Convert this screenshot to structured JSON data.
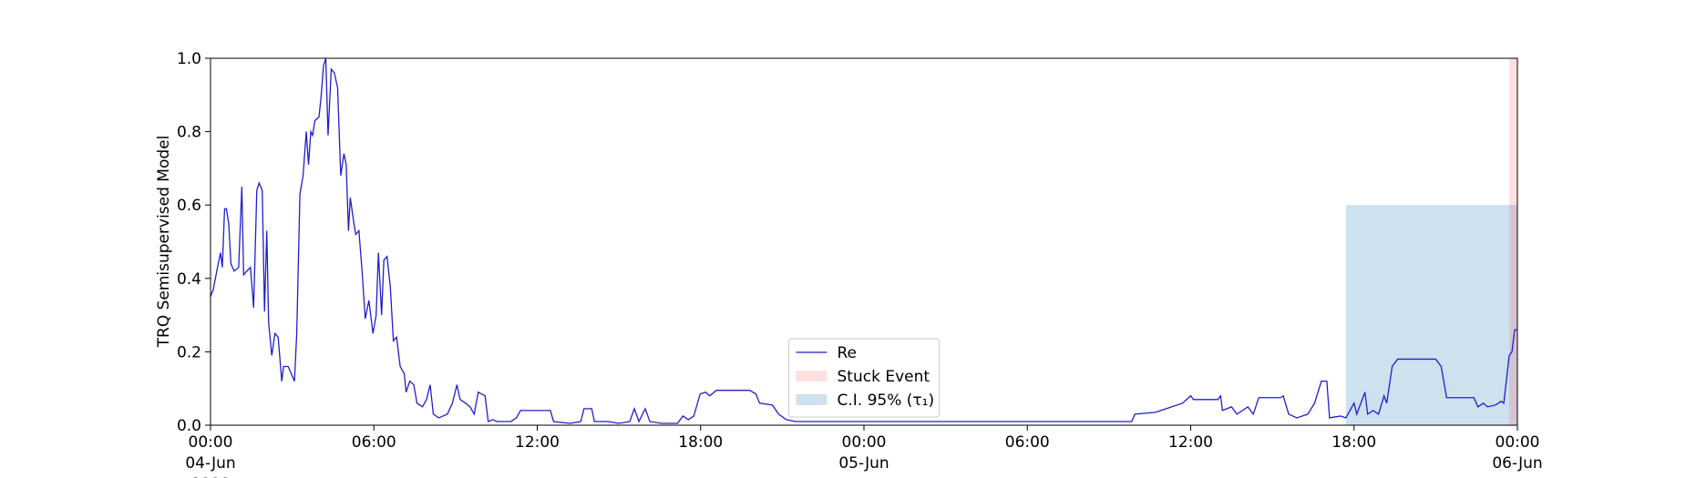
{
  "chart_data": {
    "type": "line",
    "ylabel": "TRQ Semisupervised Model",
    "xlim": [
      "1900-06-04 00:00",
      "1900-06-06 00:00"
    ],
    "xticks": [
      {
        "value": "1900-06-04 00:00",
        "label": "00:00\n04-Jun\n1900"
      },
      {
        "value": "1900-06-04 06:00",
        "label": "06:00"
      },
      {
        "value": "1900-06-04 12:00",
        "label": "12:00"
      },
      {
        "value": "1900-06-04 18:00",
        "label": "18:00"
      },
      {
        "value": "1900-06-05 00:00",
        "label": "00:00\n05-Jun"
      },
      {
        "value": "1900-06-05 06:00",
        "label": "06:00"
      },
      {
        "value": "1900-06-05 12:00",
        "label": "12:00"
      },
      {
        "value": "1900-06-05 18:00",
        "label": "18:00"
      },
      {
        "value": "1900-06-06 00:00",
        "label": "00:00\n06-Jun"
      }
    ],
    "ylim": [
      0,
      1
    ],
    "yticks": [
      {
        "value": 0,
        "label": "0.0"
      },
      0.2,
      0.4,
      0.6,
      0.8,
      {
        "value": 1,
        "label": "1.0"
      }
    ],
    "legend": "lower center",
    "x": [
      "1900-06-04 00:00",
      "1900-06-04 00:06",
      "1900-06-04 00:17",
      "1900-06-04 00:22",
      "1900-06-04 00:26",
      "1900-06-04 00:31",
      "1900-06-04 00:35",
      "1900-06-04 00:40",
      "1900-06-04 00:45",
      "1900-06-04 00:52",
      "1900-06-04 01:02",
      "1900-06-04 01:09",
      "1900-06-04 01:13",
      "1900-06-04 01:20",
      "1900-06-04 01:28",
      "1900-06-04 01:35",
      "1900-06-04 01:42",
      "1900-06-04 01:47",
      "1900-06-04 01:54",
      "1900-06-04 01:59",
      "1900-06-04 02:04",
      "1900-06-04 02:08",
      "1900-06-04 02:15",
      "1900-06-04 02:22",
      "1900-06-04 02:29",
      "1900-06-04 02:37",
      "1900-06-04 02:41",
      "1900-06-04 02:51",
      "1900-06-04 02:58",
      "1900-06-04 03:05",
      "1900-06-04 03:10",
      "1900-06-04 03:17",
      "1900-06-04 03:24",
      "1900-06-04 03:31",
      "1900-06-04 03:36",
      "1900-06-04 03:41",
      "1900-06-04 03:45",
      "1900-06-04 03:50",
      "1900-06-04 03:59",
      "1900-06-04 04:04",
      "1900-06-04 04:09",
      "1900-06-04 04:14",
      "1900-06-04 04:19",
      "1900-06-04 04:26",
      "1900-06-04 04:33",
      "1900-06-04 04:40",
      "1900-06-04 04:47",
      "1900-06-04 04:54",
      "1900-06-04 04:59",
      "1900-06-04 05:04",
      "1900-06-04 05:08",
      "1900-06-04 05:16",
      "1900-06-04 05:20",
      "1900-06-04 05:27",
      "1900-06-04 05:34",
      "1900-06-04 05:41",
      "1900-06-04 05:49",
      "1900-06-04 05:58",
      "1900-06-04 06:05",
      "1900-06-04 06:10",
      "1900-06-04 06:17",
      "1900-06-04 06:22",
      "1900-06-04 06:29",
      "1900-06-04 06:36",
      "1900-06-04 06:43",
      "1900-06-04 06:50",
      "1900-06-04 06:58",
      "1900-06-04 07:07",
      "1900-06-04 07:11",
      "1900-06-04 07:19",
      "1900-06-04 07:28",
      "1900-06-04 07:35",
      "1900-06-04 07:47",
      "1900-06-04 07:56",
      "1900-06-04 08:04",
      "1900-06-04 08:11",
      "1900-06-04 08:23",
      "1900-06-04 08:42",
      "1900-06-04 08:53",
      "1900-06-04 09:03",
      "1900-06-04 09:10",
      "1900-06-04 09:22",
      "1900-06-04 09:32",
      "1900-06-04 09:41",
      "1900-06-04 09:50",
      "1900-06-04 10:05",
      "1900-06-04 10:12",
      "1900-06-04 10:22",
      "1900-06-04 10:31",
      "1900-06-04 11:02",
      "1900-06-04 11:14",
      "1900-06-04 11:23",
      "1900-06-04 12:29",
      "1900-06-04 12:36",
      "1900-06-04 13:12",
      "1900-06-04 13:36",
      "1900-06-04 13:43",
      "1900-06-04 14:00",
      "1900-06-04 14:06",
      "1900-06-04 14:36",
      "1900-06-04 15:00",
      "1900-06-04 15:24",
      "1900-06-04 15:34",
      "1900-06-04 15:44",
      "1900-06-04 15:58",
      "1900-06-04 16:08",
      "1900-06-04 16:34",
      "1900-06-04 17:09",
      "1900-06-04 17:21",
      "1900-06-04 17:33",
      "1900-06-04 17:45",
      "1900-06-04 17:59",
      "1900-06-04 18:11",
      "1900-06-04 18:20",
      "1900-06-04 18:35",
      "1900-06-04 19:48",
      "1900-06-04 20:02",
      "1900-06-04 20:10",
      "1900-06-04 20:38",
      "1900-06-04 20:52",
      "1900-06-04 21:09",
      "1900-06-04 21:30",
      "1900-06-05 09:50",
      "1900-06-05 09:57",
      "1900-06-05 10:42",
      "1900-06-05 10:54",
      "1900-06-05 11:18",
      "1900-06-05 11:42",
      "1900-06-05 12:00",
      "1900-06-05 12:06",
      "1900-06-05 13:00",
      "1900-06-05 13:06",
      "1900-06-05 13:10",
      "1900-06-05 13:30",
      "1900-06-05 13:42",
      "1900-06-05 13:54",
      "1900-06-05 14:06",
      "1900-06-05 14:18",
      "1900-06-05 14:30",
      "1900-06-05 15:18",
      "1900-06-05 15:24",
      "1900-06-05 15:36",
      "1900-06-05 15:54",
      "1900-06-05 16:18",
      "1900-06-05 16:33",
      "1900-06-05 16:48",
      "1900-06-05 17:00",
      "1900-06-05 17:06",
      "1900-06-05 17:30",
      "1900-06-05 17:42",
      "1900-06-05 18:00",
      "1900-06-05 18:06",
      "1900-06-05 18:24",
      "1900-06-05 18:30",
      "1900-06-05 18:42",
      "1900-06-05 18:54",
      "1900-06-05 19:06",
      "1900-06-05 19:12",
      "1900-06-05 19:24",
      "1900-06-05 19:36",
      "1900-06-05 21:00",
      "1900-06-05 21:12",
      "1900-06-05 21:24",
      "1900-06-05 22:24",
      "1900-06-05 22:33",
      "1900-06-05 22:45",
      "1900-06-05 22:54",
      "1900-06-05 23:12",
      "1900-06-05 23:24",
      "1900-06-05 23:30",
      "1900-06-05 23:42",
      "1900-06-05 23:48",
      "1900-06-05 23:54",
      "1900-06-06 00:00"
    ],
    "series": [
      {
        "name": "Re",
        "color": "#1f1fcc",
        "values": [
          0.35,
          0.37,
          0.44,
          0.47,
          0.43,
          0.59,
          0.59,
          0.55,
          0.44,
          0.42,
          0.43,
          0.65,
          0.41,
          0.42,
          0.43,
          0.32,
          0.64,
          0.66,
          0.64,
          0.31,
          0.53,
          0.28,
          0.19,
          0.25,
          0.24,
          0.12,
          0.16,
          0.16,
          0.14,
          0.12,
          0.25,
          0.63,
          0.68,
          0.8,
          0.71,
          0.8,
          0.79,
          0.83,
          0.84,
          0.9,
          0.98,
          1.0,
          0.79,
          0.97,
          0.96,
          0.92,
          0.68,
          0.74,
          0.71,
          0.53,
          0.62,
          0.55,
          0.52,
          0.53,
          0.42,
          0.29,
          0.34,
          0.25,
          0.3,
          0.47,
          0.3,
          0.45,
          0.46,
          0.38,
          0.23,
          0.24,
          0.16,
          0.14,
          0.09,
          0.12,
          0.11,
          0.06,
          0.05,
          0.07,
          0.11,
          0.03,
          0.02,
          0.03,
          0.06,
          0.11,
          0.07,
          0.06,
          0.05,
          0.03,
          0.09,
          0.08,
          0.01,
          0.015,
          0.01,
          0.01,
          0.02,
          0.04,
          0.04,
          0.01,
          0.005,
          0.01,
          0.045,
          0.045,
          0.01,
          0.01,
          0.005,
          0.01,
          0.045,
          0.01,
          0.045,
          0.01,
          0.005,
          0.005,
          0.025,
          0.015,
          0.025,
          0.085,
          0.09,
          0.08,
          0.095,
          0.095,
          0.085,
          0.06,
          0.055,
          0.03,
          0.015,
          0.01,
          0.01,
          0.03,
          0.035,
          0.04,
          0.05,
          0.06,
          0.08,
          0.07,
          0.07,
          0.08,
          0.04,
          0.05,
          0.03,
          0.04,
          0.05,
          0.03,
          0.075,
          0.075,
          0.08,
          0.03,
          0.02,
          0.03,
          0.06,
          0.12,
          0.12,
          0.02,
          0.025,
          0.02,
          0.06,
          0.03,
          0.09,
          0.03,
          0.04,
          0.03,
          0.08,
          0.06,
          0.16,
          0.18,
          0.18,
          0.16,
          0.075,
          0.075,
          0.05,
          0.06,
          0.05,
          0.055,
          0.065,
          0.06,
          0.19,
          0.2,
          0.26,
          0.26
        ]
      }
    ],
    "spans": [
      {
        "name": "Stuck Event",
        "color": "#ff0000",
        "opacity": 0.12,
        "x": [
          "1900-06-05 23:42",
          "1900-06-06 00:00"
        ]
      },
      {
        "name": "C.I. 95% (τ₁)",
        "color": "#1f77b4",
        "opacity": 0.22,
        "x": [
          "1900-06-05 17:42",
          "1900-06-06 00:00"
        ],
        "y": [
          0,
          0.6
        ]
      }
    ]
  }
}
